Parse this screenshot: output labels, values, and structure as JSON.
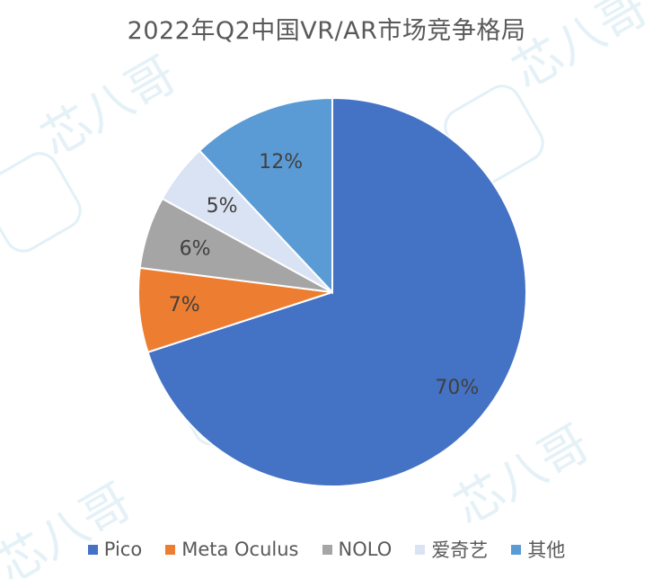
{
  "chart_data": {
    "type": "pie",
    "title": "2022年Q2中国VR/AR市场竞争格局",
    "categories": [
      "Pico",
      "Meta Oculus",
      "NOLO",
      "爱奇艺",
      "其他"
    ],
    "values": [
      70,
      7,
      6,
      5,
      12
    ],
    "labels": [
      "70%",
      "7%",
      "6%",
      "5%",
      "12%"
    ],
    "colors": [
      "#4472C4",
      "#ED7D31",
      "#A5A5A5",
      "#DAE3F3",
      "#5B9BD5"
    ],
    "start_angle_deg": 0,
    "direction": "clockwise",
    "legend_position": "bottom"
  },
  "watermark": {
    "text": "芯八哥"
  }
}
